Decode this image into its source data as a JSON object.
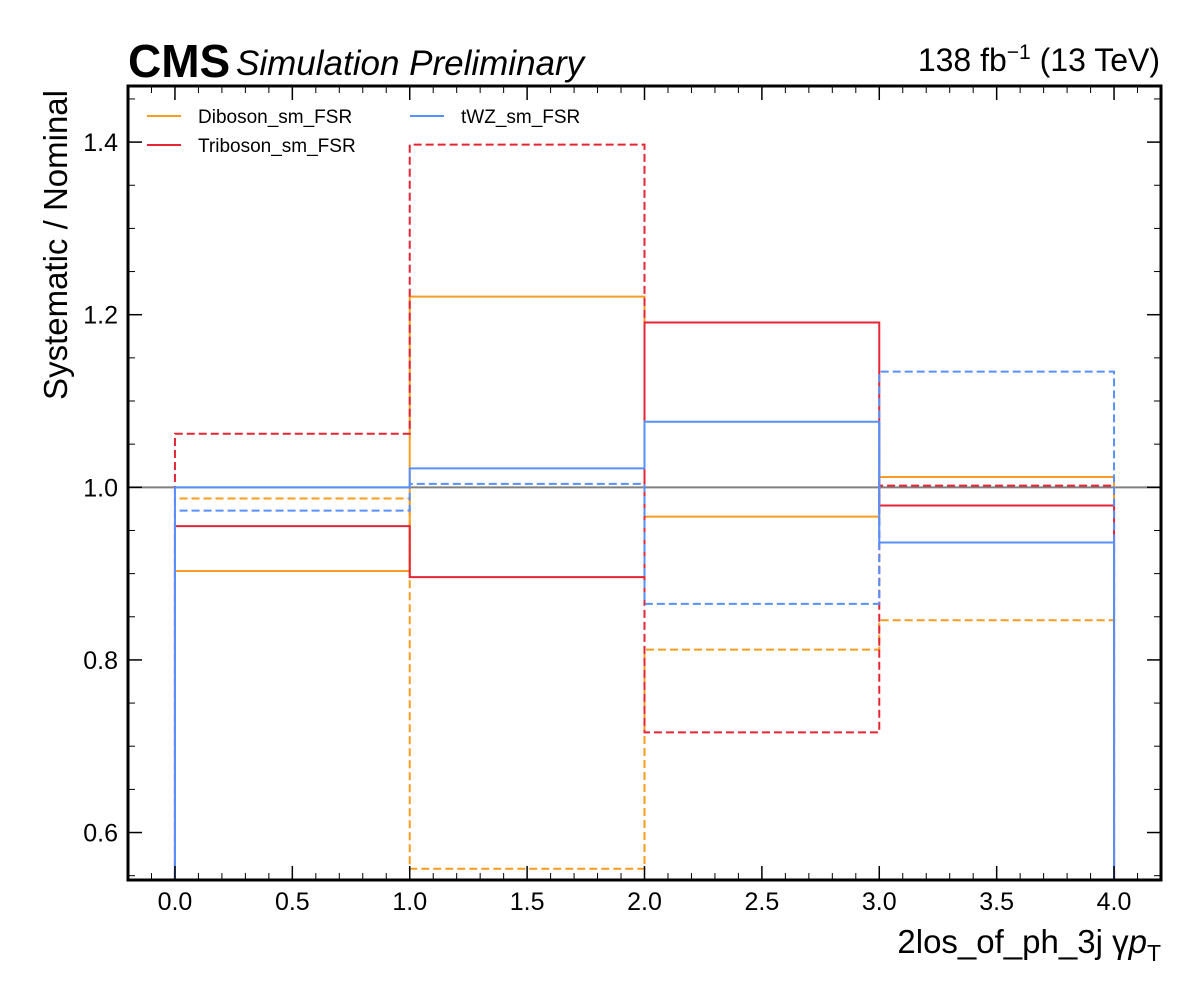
{
  "header": {
    "experiment": "CMS",
    "status": "Simulation Preliminary",
    "lumi_value": "138 fb",
    "lumi_exp": "−1",
    "energy": "(13 TeV)"
  },
  "chart_data": {
    "type": "step",
    "xlabel": "2los_of_ph_3j   γ",
    "xlabel_var": "p",
    "xlabel_sub": "T",
    "ylabel": "Systematic / Nominal",
    "xlim": [
      -0.2,
      4.2
    ],
    "ylim": [
      0.545,
      1.465
    ],
    "x_ticks": [
      0.0,
      0.5,
      1.0,
      1.5,
      2.0,
      2.5,
      3.0,
      3.5,
      4.0
    ],
    "x_tick_labels": [
      "0.0",
      "0.5",
      "1.0",
      "1.5",
      "2.0",
      "2.5",
      "3.0",
      "3.5",
      "4.0"
    ],
    "y_ticks": [
      0.6,
      0.8,
      1.0,
      1.2,
      1.4
    ],
    "y_tick_labels": [
      "0.6",
      "0.8",
      "1.0",
      "1.2",
      "1.4"
    ],
    "reference_line": 1.0,
    "bin_edges": [
      0,
      1,
      2,
      3,
      4
    ],
    "legend": {
      "location": "upper-left",
      "columns": 2
    },
    "series": [
      {
        "name": "Diboson_sm_FSR",
        "variation": "up",
        "style": "solid",
        "color": "#f89c20",
        "values": [
          0.903,
          1.221,
          0.966,
          1.012
        ]
      },
      {
        "name": "Diboson_sm_FSR",
        "variation": "down",
        "style": "dashed",
        "color": "#f89c20",
        "values": [
          0.987,
          0.558,
          0.812,
          0.846
        ]
      },
      {
        "name": "Triboson_sm_FSR",
        "variation": "up",
        "style": "solid",
        "color": "#e42536",
        "values": [
          0.955,
          0.896,
          1.191,
          0.979
        ]
      },
      {
        "name": "Triboson_sm_FSR",
        "variation": "down",
        "style": "dashed",
        "color": "#e42536",
        "values": [
          1.062,
          1.397,
          0.716,
          1.002
        ]
      },
      {
        "name": "tWZ_sm_FSR",
        "variation": "up",
        "style": "solid",
        "color": "#5790fc",
        "values": [
          1.0,
          1.022,
          1.076,
          0.936
        ]
      },
      {
        "name": "tWZ_sm_FSR",
        "variation": "down",
        "style": "dashed",
        "color": "#5790fc",
        "values": [
          0.973,
          1.004,
          0.865,
          1.134
        ]
      }
    ],
    "legend_entries": [
      {
        "name": "Diboson_sm_FSR",
        "color": "#f89c20"
      },
      {
        "name": "Triboson_sm_FSR",
        "color": "#e42536"
      },
      {
        "name": "tWZ_sm_FSR",
        "color": "#5790fc"
      }
    ]
  }
}
